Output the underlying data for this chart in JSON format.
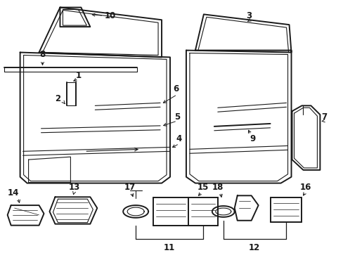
{
  "bg_color": "#ffffff",
  "line_color": "#1a1a1a",
  "figsize": [
    4.89,
    3.6
  ],
  "dpi": 100,
  "font_size": 8.5
}
